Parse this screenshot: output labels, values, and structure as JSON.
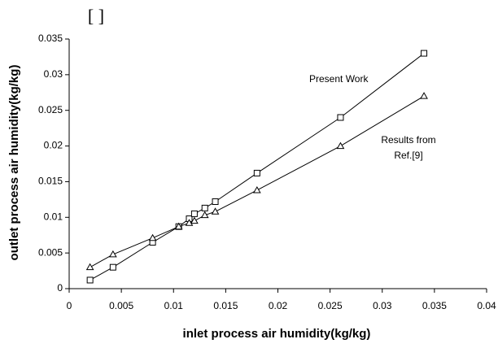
{
  "chart_data": {
    "type": "line",
    "title": "[ ]",
    "x_label": "inlet process air humidity(kg/kg)",
    "y_label": "outlet process air humidity(kg/kg)",
    "x": [
      0.002,
      0.0042,
      0.008,
      0.0105,
      0.0115,
      0.012,
      0.013,
      0.014,
      0.018,
      0.026,
      0.034
    ],
    "series": [
      {
        "marker": "square",
        "color": "#000000",
        "values": [
          0.0012,
          0.003,
          0.0065,
          0.0087,
          0.0098,
          0.0105,
          0.0113,
          0.0122,
          0.0162,
          0.024,
          0.033
        ]
      },
      {
        "marker": "triangle",
        "color": "#000000",
        "values": [
          0.003,
          0.0048,
          0.0071,
          0.0087,
          0.0092,
          0.0095,
          0.0103,
          0.0108,
          0.0138,
          0.02,
          0.027
        ]
      }
    ],
    "annotations": [
      "Present Work",
      "Results from",
      "Ref.[9]"
    ],
    "xlim": [
      0,
      0.04
    ],
    "xticks": [
      0,
      0.005,
      0.01,
      0.015,
      0.02,
      0.025,
      0.03,
      0.035,
      0.04
    ],
    "ylim": [
      0,
      0.035
    ],
    "yticks": [
      0,
      0.005,
      0.01,
      0.015,
      0.02,
      0.025,
      0.03,
      0.035
    ],
    "grid": false
  }
}
